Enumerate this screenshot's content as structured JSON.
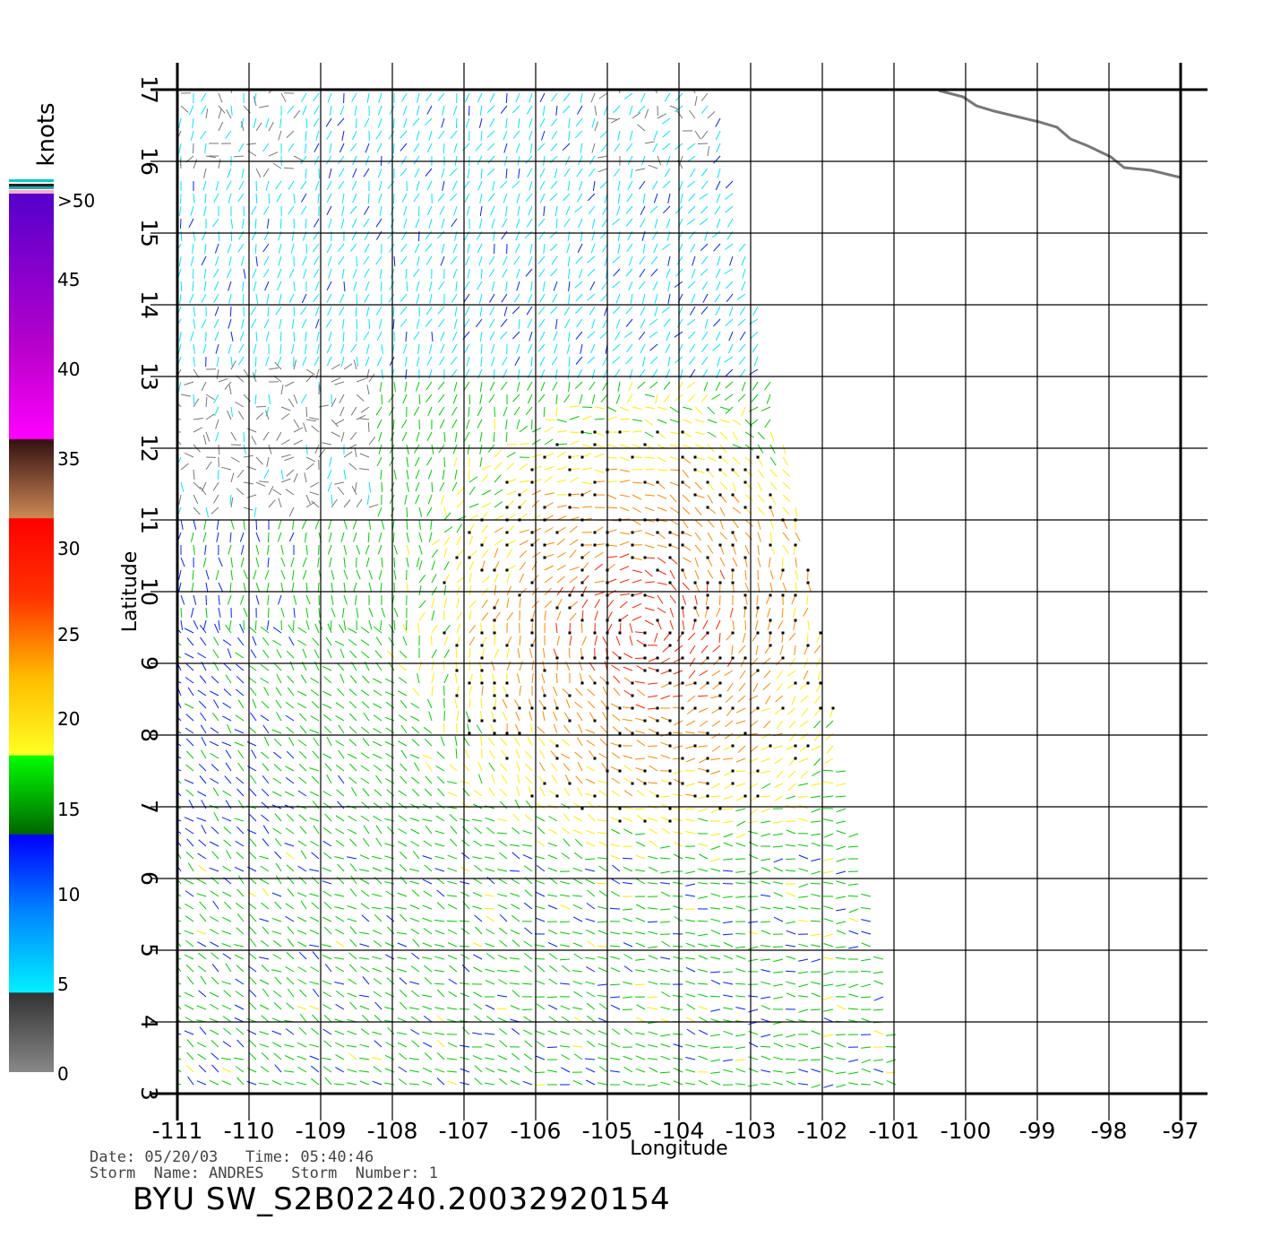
{
  "axes": {
    "xlabel": "Longitude",
    "ylabel": "Latitude",
    "x_ticks": [
      "-111",
      "-110",
      "-109",
      "-108",
      "-107",
      "-106",
      "-105",
      "-104",
      "-103",
      "-102",
      "-101",
      "-100",
      "-99",
      "-98",
      "-97"
    ],
    "y_ticks": [
      "3",
      "4",
      "5",
      "6",
      "7",
      "8",
      "9",
      "10",
      "11",
      "12",
      "13",
      "14",
      "15",
      "16",
      "17"
    ],
    "xlim": [
      -111,
      -97
    ],
    "ylim": [
      3,
      17
    ]
  },
  "legend": {
    "unit": "knots",
    "labels": [
      ">50",
      "45",
      "40",
      "35",
      "30",
      "25",
      "20",
      "15",
      "10",
      "5",
      "0"
    ],
    "colors": {
      "0_5": "#777777",
      "5_10": "#00e5ff",
      "10_15": "#0022ff",
      "15_20": "#00cc00",
      "20_25": "#ffee00",
      "25_30": "#ff8800",
      "30_35": "#ff2200",
      "35_40": "#aa6644",
      "40_45": "#ff00ff",
      "45_50": "#7700cc"
    }
  },
  "info": {
    "date_line": "Date: 05/20/03   Time: 05:40:46",
    "storm_line": "Storm  Name: ANDRES   Storm  Number: 1"
  },
  "filename": "BYU  SW_S2B02240.20032920154"
}
